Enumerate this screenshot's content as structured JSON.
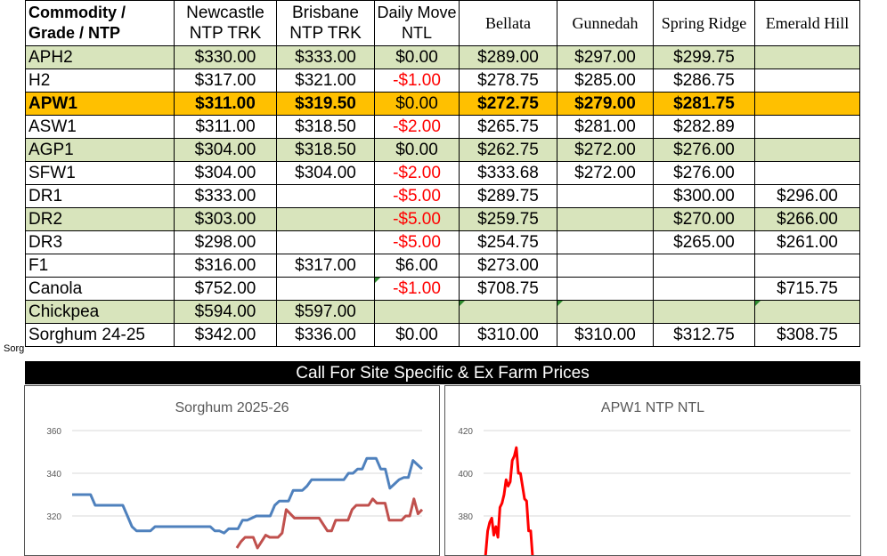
{
  "clipped_text": "Sorg",
  "table": {
    "headers": [
      "Commodity / Grade / NTP",
      "Newcastle NTP TRK",
      "Brisbane NTP TRK",
      "Daily Move NTL",
      "Bellata",
      "Gunnedah",
      "Spring Ridge",
      "Emerald Hill"
    ],
    "rows": [
      {
        "style": "green",
        "cells": [
          "APH2",
          "$330.00",
          "$333.00",
          "$0.00",
          "$289.00",
          "$297.00",
          "$299.75",
          ""
        ]
      },
      {
        "style": "",
        "cells": [
          "H2",
          "$317.00",
          "$321.00",
          "-$1.00",
          "$278.75",
          "$285.00",
          "$286.75",
          ""
        ]
      },
      {
        "style": "orange",
        "cells": [
          "APW1",
          "$311.00",
          "$319.50",
          "$0.00",
          "$272.75",
          "$279.00",
          "$281.75",
          ""
        ]
      },
      {
        "style": "",
        "cells": [
          "ASW1",
          "$311.00",
          "$318.50",
          "-$2.00",
          "$265.75",
          "$281.00",
          "$282.89",
          ""
        ]
      },
      {
        "style": "green",
        "cells": [
          "AGP1",
          "$304.00",
          "$318.50",
          "$0.00",
          "$262.75",
          "$272.00",
          "$276.00",
          ""
        ]
      },
      {
        "style": "",
        "cells": [
          "SFW1",
          "$304.00",
          "$304.00",
          "-$2.00",
          "$333.68",
          "$272.00",
          "$276.00",
          ""
        ]
      },
      {
        "style": "",
        "cells": [
          "DR1",
          "$333.00",
          "",
          "-$5.00",
          "$289.75",
          "",
          "$300.00",
          "$296.00"
        ]
      },
      {
        "style": "green",
        "cells": [
          "DR2",
          "$303.00",
          "",
          "-$5.00",
          "$259.75",
          "",
          "$270.00",
          "$266.00"
        ]
      },
      {
        "style": "",
        "cells": [
          "DR3",
          "$298.00",
          "",
          "-$5.00",
          "$254.75",
          "",
          "$265.00",
          "$261.00"
        ]
      },
      {
        "style": "",
        "cells": [
          "F1",
          "$316.00",
          "$317.00",
          "$6.00",
          "$273.00",
          "",
          "",
          ""
        ]
      },
      {
        "style": "",
        "cells": [
          "Canola",
          "$752.00",
          "",
          "-$1.00",
          "$708.75",
          "",
          "",
          "$715.75"
        ]
      },
      {
        "style": "green",
        "cells": [
          "Chickpea",
          "$594.00",
          "$597.00",
          "",
          "",
          "",
          "",
          ""
        ]
      },
      {
        "style": "",
        "cells": [
          "Sorghum 24-25",
          "$342.00",
          "$336.00",
          "$0.00",
          "$310.00",
          "$310.00",
          "$312.75",
          "$308.75"
        ]
      }
    ]
  },
  "banner": "Call For Site Specific & Ex Farm Prices",
  "colors": {
    "green_row": "#d8e4bc",
    "highlight_row": "#ffc000",
    "negative": "#ff0000",
    "series_blue": "#4f81bd",
    "series_red": "#c0504d",
    "series_bright_red": "#ff0000"
  },
  "chart_data": [
    {
      "type": "line",
      "title": "Sorghum 2025-26",
      "yticks": [
        320,
        340,
        360
      ],
      "ylim": [
        300,
        360
      ],
      "grid": true,
      "series": [
        {
          "color": "#4f81bd",
          "values": [
            330,
            330,
            330,
            330,
            330,
            325,
            325,
            325,
            325,
            325,
            325,
            325,
            320,
            315,
            313,
            313,
            313,
            313,
            315,
            315,
            315,
            315,
            315,
            315,
            315,
            315,
            315,
            315,
            315,
            315,
            315,
            313,
            313,
            312,
            314,
            314,
            314,
            318,
            318,
            319,
            320,
            320,
            320,
            320,
            325,
            327,
            327,
            327,
            332,
            332,
            332,
            334,
            337,
            337,
            337,
            337,
            337,
            337,
            337,
            337,
            340,
            340,
            342,
            342,
            347,
            347,
            347,
            342,
            342,
            333,
            335,
            337,
            338,
            338,
            346,
            344,
            342
          ]
        },
        {
          "color": "#c0504d",
          "values": [
            null,
            null,
            null,
            null,
            null,
            null,
            null,
            null,
            null,
            null,
            null,
            null,
            null,
            null,
            null,
            null,
            null,
            null,
            null,
            null,
            null,
            null,
            null,
            null,
            null,
            null,
            null,
            null,
            null,
            null,
            null,
            null,
            null,
            null,
            null,
            null,
            null,
            null,
            null,
            null,
            305,
            308,
            310,
            310,
            310,
            305,
            308,
            311,
            310,
            310,
            310,
            312,
            323,
            321,
            319,
            319,
            319,
            319,
            319,
            319,
            319,
            316,
            313,
            313,
            318,
            318,
            318,
            318,
            323,
            325,
            325,
            325,
            325,
            328,
            326,
            326,
            326,
            318,
            318,
            318,
            318,
            320,
            320,
            328,
            321,
            323
          ]
        }
      ]
    },
    {
      "type": "line",
      "title": "APW1 NTP NTL",
      "yticks": [
        380,
        400,
        420
      ],
      "ylim": [
        360,
        420
      ],
      "grid": true,
      "series": [
        {
          "color": "#ff0000",
          "values": [
            355,
            362,
            373,
            377,
            379,
            371,
            375,
            370,
            384,
            386,
            390,
            397,
            394,
            396,
            406,
            408,
            412,
            400,
            400,
            394,
            388,
            387,
            373,
            373,
            360,
            350
          ]
        }
      ]
    }
  ]
}
